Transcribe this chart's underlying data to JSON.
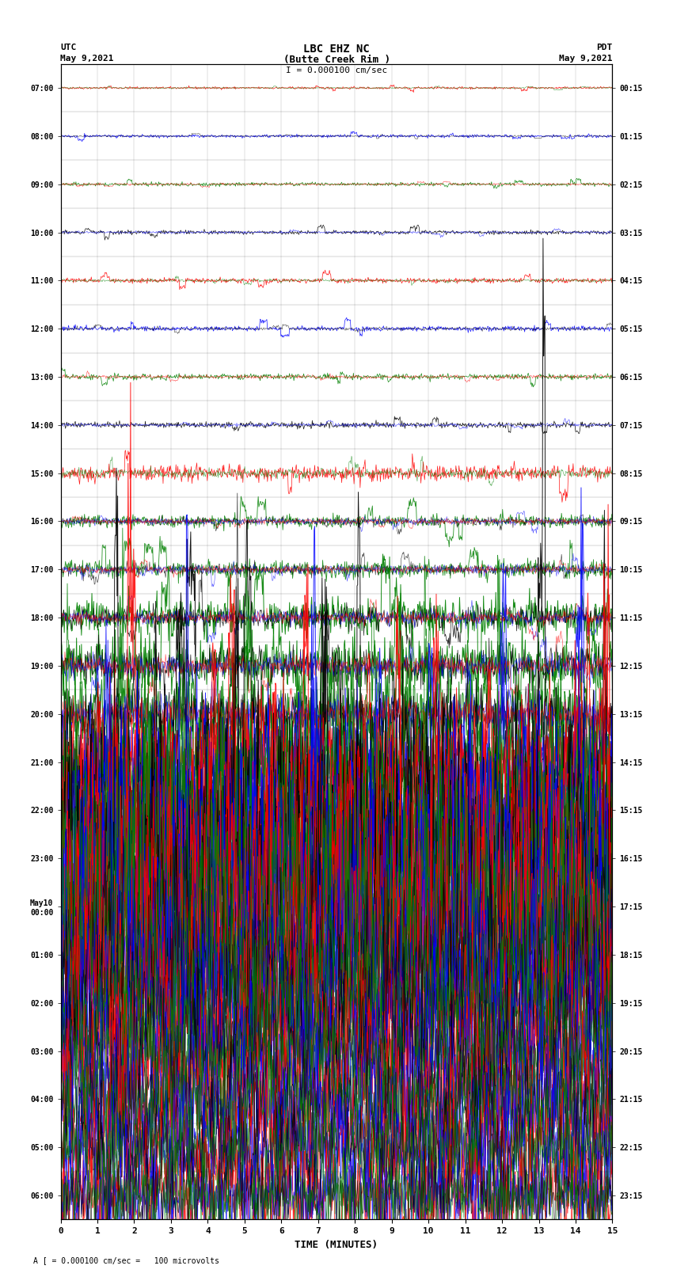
{
  "title_line1": "LBC EHZ NC",
  "title_line2": "(Butte Creek Rim )",
  "scale_label": "I = 0.000100 cm/sec",
  "left_label_top": "UTC",
  "left_label_date": "May 9,2021",
  "right_label_top": "PDT",
  "right_label_date": "May 9,2021",
  "bottom_label": "TIME (MINUTES)",
  "footer_label": "A [ = 0.000100 cm/sec =   100 microvolts",
  "xlabel_ticks": [
    0,
    1,
    2,
    3,
    4,
    5,
    6,
    7,
    8,
    9,
    10,
    11,
    12,
    13,
    14,
    15
  ],
  "xlim": [
    0,
    15
  ],
  "utc_times": [
    "07:00",
    "08:00",
    "09:00",
    "10:00",
    "11:00",
    "12:00",
    "13:00",
    "14:00",
    "15:00",
    "16:00",
    "17:00",
    "18:00",
    "19:00",
    "20:00",
    "21:00",
    "22:00",
    "23:00",
    "May10\n00:00",
    "01:00",
    "02:00",
    "03:00",
    "04:00",
    "05:00",
    "06:00"
  ],
  "pdt_times": [
    "00:15",
    "01:15",
    "02:15",
    "03:15",
    "04:15",
    "05:15",
    "06:15",
    "07:15",
    "08:15",
    "09:15",
    "10:15",
    "11:15",
    "12:15",
    "13:15",
    "14:15",
    "15:15",
    "16:15",
    "17:15",
    "18:15",
    "19:15",
    "20:15",
    "21:15",
    "22:15",
    "23:15"
  ],
  "n_rows": 24,
  "bg_color": "white",
  "colors": [
    "red",
    "blue",
    "green",
    "black"
  ]
}
